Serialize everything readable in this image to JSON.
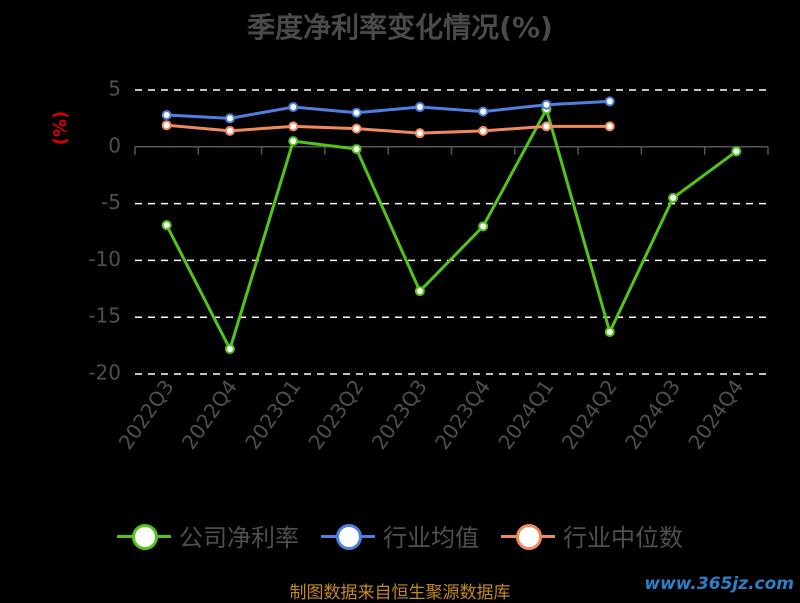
{
  "title": "季度净利率变化情况(%)",
  "source": "制图数据来自恒生聚源数据库",
  "watermark": "www.365jz.com",
  "chart_data": {
    "type": "line",
    "title": "季度净利率变化情况(%)",
    "ylabel": "(%)",
    "categories": [
      "2022Q3",
      "2022Q4",
      "2023Q1",
      "2023Q2",
      "2023Q3",
      "2023Q4",
      "2024Q1",
      "2024Q2",
      "2024Q3",
      "2024Q4"
    ],
    "ylim": [
      -20,
      5
    ],
    "yticks": [
      5,
      0,
      -5,
      -10,
      -15,
      -20
    ],
    "grid": true,
    "legend_position": "bottom",
    "series": [
      {
        "name": "公司净利率",
        "color": "#52c41a",
        "values": [
          -6.9,
          -17.8,
          0.5,
          -0.2,
          -12.7,
          -7.0,
          3.3,
          -16.3,
          -4.5,
          -0.4
        ]
      },
      {
        "name": "行业均值",
        "color": "#4f7fdf",
        "values": [
          2.8,
          2.5,
          3.5,
          3.0,
          3.5,
          3.1,
          3.7,
          4.0,
          null,
          null
        ]
      },
      {
        "name": "行业中位数",
        "color": "#f08a5d",
        "values": [
          1.9,
          1.4,
          1.8,
          1.6,
          1.2,
          1.4,
          1.8,
          1.8,
          null,
          null
        ]
      }
    ]
  }
}
